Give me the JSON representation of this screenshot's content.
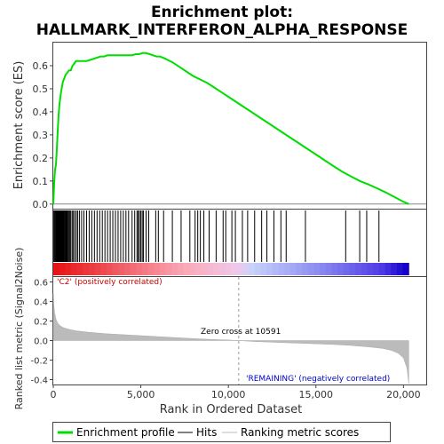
{
  "chart_data": {
    "type": "line",
    "title_line1": "Enrichment plot:",
    "title_line2": "HALLMARK_INTERFERON_ALPHA_RESPONSE",
    "xlabel": "Rank in Ordered Dataset",
    "es_panel": {
      "ylabel": "Enrichment score (ES)",
      "ylim": [
        -0.02,
        0.7
      ],
      "yticks": [
        "0.0",
        "0.1",
        "0.2",
        "0.3",
        "0.4",
        "0.5",
        "0.6"
      ],
      "ytick_values": [
        0,
        0.1,
        0.2,
        0.3,
        0.4,
        0.5,
        0.6
      ],
      "series_name": "Enrichment profile",
      "color": "#00dd00",
      "x": [
        0,
        50,
        100,
        150,
        200,
        250,
        300,
        350,
        400,
        450,
        500,
        550,
        600,
        700,
        800,
        900,
        1000,
        1100,
        1200,
        1300,
        1400,
        1500,
        1700,
        1900,
        2100,
        2300,
        2500,
        2700,
        2900,
        3100,
        3300,
        3500,
        3700,
        3900,
        4100,
        4300,
        4500,
        4700,
        4900,
        5100,
        5300,
        5500,
        5700,
        5900,
        6100,
        6400,
        6800,
        7200,
        7600,
        8000,
        8400,
        8800,
        9200,
        9600,
        10000,
        10500,
        11000,
        11500,
        12000,
        12500,
        13000,
        13500,
        14000,
        14500,
        15000,
        15500,
        16000,
        16500,
        17000,
        17500,
        18000,
        18500,
        19000,
        19500,
        20000,
        20300
      ],
      "y": [
        0.0,
        0.09,
        0.15,
        0.17,
        0.23,
        0.31,
        0.38,
        0.43,
        0.46,
        0.49,
        0.51,
        0.53,
        0.54,
        0.56,
        0.57,
        0.58,
        0.58,
        0.6,
        0.61,
        0.62,
        0.62,
        0.62,
        0.62,
        0.62,
        0.625,
        0.63,
        0.635,
        0.64,
        0.64,
        0.645,
        0.645,
        0.645,
        0.645,
        0.645,
        0.645,
        0.645,
        0.645,
        0.65,
        0.65,
        0.655,
        0.655,
        0.65,
        0.645,
        0.64,
        0.64,
        0.63,
        0.615,
        0.595,
        0.575,
        0.555,
        0.54,
        0.525,
        0.505,
        0.485,
        0.465,
        0.44,
        0.415,
        0.39,
        0.365,
        0.34,
        0.315,
        0.29,
        0.265,
        0.24,
        0.215,
        0.19,
        0.165,
        0.14,
        0.12,
        0.1,
        0.085,
        0.068,
        0.05,
        0.03,
        0.01,
        0.0
      ]
    },
    "hits": [
      30,
      80,
      120,
      160,
      190,
      220,
      250,
      270,
      300,
      320,
      350,
      380,
      400,
      420,
      450,
      480,
      510,
      540,
      570,
      600,
      640,
      680,
      720,
      760,
      800,
      850,
      900,
      950,
      1000,
      1080,
      1150,
      1230,
      1320,
      1400,
      1500,
      1620,
      1750,
      1900,
      2050,
      2200,
      2350,
      2500,
      2650,
      2800,
      2950,
      3100,
      3250,
      3400,
      3550,
      3700,
      3850,
      4000,
      4150,
      4300,
      4500,
      4650,
      4780,
      4850,
      4920,
      5000,
      5080,
      5150,
      5300,
      5450,
      5850,
      6000,
      6300,
      6800,
      7300,
      7800,
      8100,
      8250,
      8400,
      8600,
      8900,
      9300,
      9700,
      9850,
      10200,
      10400,
      10800,
      11100,
      11500,
      11900,
      12200,
      12600,
      13000,
      13300,
      14400,
      16700,
      17500,
      17900,
      18600
    ],
    "ranking_panel": {
      "ylabel": "Ranked list metric (Signal2Noise)",
      "ylim": [
        -0.45,
        0.65
      ],
      "yticks": [
        "-0.4",
        "-0.2",
        "0.0",
        "0.2",
        "0.4",
        "0.6"
      ],
      "ytick_values": [
        -0.4,
        -0.2,
        0,
        0.2,
        0.4,
        0.6
      ],
      "zero_cross_label": "Zero cross at 10591",
      "zero_cross": 10591,
      "positive_label": "'C2' (positively correlated)",
      "negative_label": "'REMAINING' (negatively correlated)",
      "x": [
        0,
        30,
        80,
        150,
        250,
        400,
        600,
        900,
        1300,
        2000,
        3000,
        4000,
        5000,
        6000,
        7000,
        8000,
        9000,
        10000,
        10591,
        11500,
        13000,
        14500,
        16000,
        17000,
        18000,
        18800,
        19300,
        19700,
        20000,
        20200,
        20300
      ],
      "y": [
        0.48,
        0.36,
        0.28,
        0.22,
        0.18,
        0.15,
        0.13,
        0.115,
        0.1,
        0.085,
        0.07,
        0.06,
        0.05,
        0.04,
        0.03,
        0.02,
        0.012,
        0.005,
        0.0,
        -0.01,
        -0.02,
        -0.03,
        -0.04,
        -0.05,
        -0.065,
        -0.08,
        -0.1,
        -0.13,
        -0.18,
        -0.28,
        -0.44
      ]
    },
    "xlim": [
      0,
      21300
    ],
    "xticks": [
      "0",
      "5,000",
      "10,000",
      "15,000",
      "20,000"
    ],
    "xtick_values": [
      0,
      5000,
      10000,
      15000,
      20000
    ],
    "legend": [
      {
        "label": "Enrichment profile",
        "color": "#00dd00"
      },
      {
        "label": "Hits",
        "color": "#000000"
      },
      {
        "label": "Ranking metric scores",
        "color": "#bbbbbb"
      }
    ]
  }
}
